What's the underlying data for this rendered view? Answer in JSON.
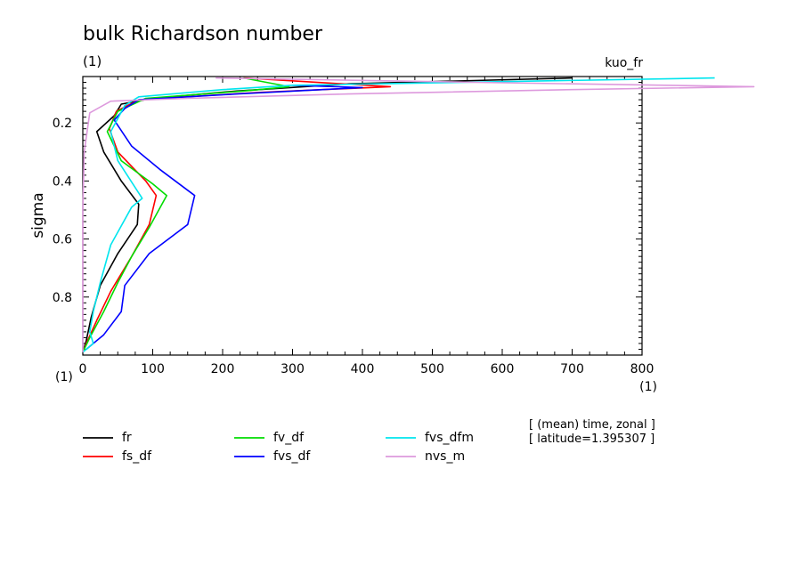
{
  "chart_data": {
    "type": "line",
    "title": "bulk Richardson number",
    "unit_top_left": "(1)",
    "unit_bottom_left": "(1)",
    "experiment_label": "kuo_fr",
    "xlabel_unit": "(1)",
    "ylabel": "sigma",
    "xlim": [
      0,
      800
    ],
    "ylim": [
      0.04,
      1.0
    ],
    "x_ticks": [
      0,
      100,
      200,
      300,
      400,
      500,
      600,
      700,
      800
    ],
    "x_tick_labels": [
      "0",
      "100",
      "200",
      "300",
      "400",
      "500",
      "600",
      "700",
      "800"
    ],
    "y_ticks": [
      0.2,
      0.4,
      0.6,
      0.8
    ],
    "y_tick_labels": [
      "0.2",
      "0.4",
      "0.6",
      "0.8"
    ],
    "annotation_lines": [
      "[ (mean) time, zonal ]",
      "[ latitude=1.395307 ]"
    ],
    "series": [
      {
        "name": "fr",
        "color": "#000000",
        "points": [
          [
            700,
            0.045
          ],
          [
            380,
            0.065
          ],
          [
            220,
            0.09
          ],
          [
            100,
            0.115
          ],
          [
            55,
            0.135
          ],
          [
            45,
            0.175
          ],
          [
            20,
            0.23
          ],
          [
            30,
            0.3
          ],
          [
            55,
            0.4
          ],
          [
            80,
            0.48
          ],
          [
            78,
            0.55
          ],
          [
            50,
            0.65
          ],
          [
            25,
            0.76
          ],
          [
            12,
            0.87
          ],
          [
            5,
            0.95
          ],
          [
            0,
            0.99
          ]
        ]
      },
      {
        "name": "fs_df",
        "color": "#ff0000",
        "points": [
          [
            230,
            0.045
          ],
          [
            440,
            0.075
          ],
          [
            250,
            0.095
          ],
          [
            80,
            0.12
          ],
          [
            48,
            0.16
          ],
          [
            38,
            0.22
          ],
          [
            50,
            0.3
          ],
          [
            90,
            0.4
          ],
          [
            105,
            0.45
          ],
          [
            95,
            0.55
          ],
          [
            70,
            0.66
          ],
          [
            40,
            0.78
          ],
          [
            20,
            0.88
          ],
          [
            5,
            0.96
          ],
          [
            0,
            0.99
          ]
        ]
      },
      {
        "name": "fv_df",
        "color": "#00dd00",
        "points": [
          [
            230,
            0.045
          ],
          [
            295,
            0.075
          ],
          [
            230,
            0.09
          ],
          [
            90,
            0.115
          ],
          [
            50,
            0.16
          ],
          [
            35,
            0.23
          ],
          [
            55,
            0.33
          ],
          [
            100,
            0.41
          ],
          [
            120,
            0.45
          ],
          [
            95,
            0.56
          ],
          [
            70,
            0.66
          ],
          [
            50,
            0.75
          ],
          [
            30,
            0.85
          ],
          [
            10,
            0.94
          ],
          [
            0,
            0.99
          ]
        ]
      },
      {
        "name": "fvs_df",
        "color": "#0000ff",
        "points": [
          [
            300,
            0.07
          ],
          [
            400,
            0.078
          ],
          [
            220,
            0.1
          ],
          [
            80,
            0.12
          ],
          [
            60,
            0.15
          ],
          [
            45,
            0.19
          ],
          [
            70,
            0.28
          ],
          [
            110,
            0.36
          ],
          [
            160,
            0.45
          ],
          [
            150,
            0.55
          ],
          [
            95,
            0.65
          ],
          [
            60,
            0.76
          ],
          [
            55,
            0.85
          ],
          [
            30,
            0.93
          ],
          [
            5,
            0.98
          ]
        ]
      },
      {
        "name": "fvs_dfm",
        "color": "#00e5ee",
        "points": [
          [
            904,
            0.045
          ],
          [
            300,
            0.07
          ],
          [
            200,
            0.085
          ],
          [
            80,
            0.11
          ],
          [
            60,
            0.14
          ],
          [
            40,
            0.23
          ],
          [
            50,
            0.33
          ],
          [
            85,
            0.46
          ],
          [
            70,
            0.49
          ],
          [
            40,
            0.62
          ],
          [
            25,
            0.75
          ],
          [
            15,
            0.85
          ],
          [
            10,
            0.92
          ],
          [
            15,
            0.96
          ],
          [
            0,
            0.99
          ]
        ]
      },
      {
        "name": "nvs_m",
        "color": "#dd99dd",
        "points": [
          [
            190,
            0.045
          ],
          [
            560,
            0.06
          ],
          [
            960,
            0.075
          ],
          [
            700,
            0.085
          ],
          [
            380,
            0.1
          ],
          [
            150,
            0.115
          ],
          [
            40,
            0.125
          ],
          [
            10,
            0.165
          ],
          [
            2,
            0.3
          ],
          [
            0,
            0.5
          ],
          [
            0,
            0.99
          ]
        ]
      }
    ],
    "legend": {
      "placement": "bottom",
      "entries": [
        "fr",
        "fv_df",
        "fvs_dfm",
        "fs_df",
        "fvs_df",
        "nvs_m"
      ]
    }
  }
}
